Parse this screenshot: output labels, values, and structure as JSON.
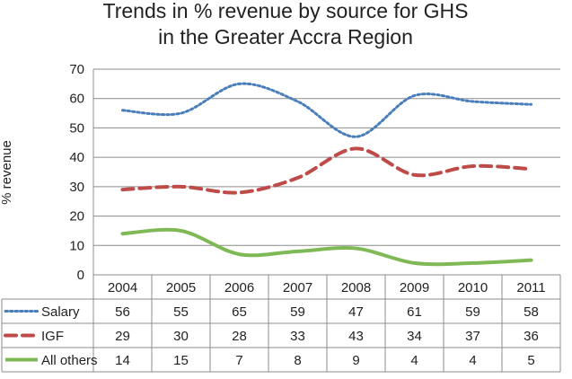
{
  "chart_data": {
    "type": "line",
    "title_lines": [
      "Trends in % revenue by source for GHS",
      "in the Greater Accra Region"
    ],
    "xlabel": "",
    "ylabel": "% revenue",
    "categories": [
      "2004",
      "2005",
      "2006",
      "2007",
      "2008",
      "2009",
      "2010",
      "2011"
    ],
    "ylim": [
      0,
      70
    ],
    "yticks": [
      "0",
      "10",
      "20",
      "30",
      "40",
      "50",
      "60",
      "70"
    ],
    "grid": true,
    "legend": "data-table",
    "series": [
      {
        "name": "Salary",
        "values": [
          56,
          55,
          65,
          59,
          47,
          61,
          59,
          58
        ],
        "color": "#4a7ebb",
        "style": "dotted"
      },
      {
        "name": "IGF",
        "values": [
          29,
          30,
          28,
          33,
          43,
          34,
          37,
          36
        ],
        "color": "#be4b48",
        "style": "dashed"
      },
      {
        "name": "All others",
        "values": [
          14,
          15,
          7,
          8,
          9,
          4,
          4,
          5
        ],
        "color": "#7fb955",
        "style": "solid"
      }
    ]
  }
}
